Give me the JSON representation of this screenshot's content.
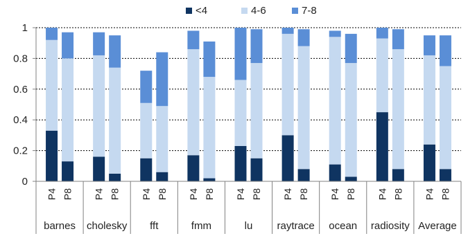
{
  "chart_data": {
    "type": "bar",
    "stacked": true,
    "groups": [
      "barnes",
      "cholesky",
      "fft",
      "fmm",
      "lu",
      "raytrace",
      "ocean",
      "radiosity",
      "Average"
    ],
    "bar_labels": [
      "P4",
      "P8"
    ],
    "series": [
      {
        "name": "<4",
        "color": "#0f3461",
        "values": [
          [
            0.33,
            0.13
          ],
          [
            0.16,
            0.05
          ],
          [
            0.15,
            0.06
          ],
          [
            0.17,
            0.02
          ],
          [
            0.23,
            0.15
          ],
          [
            0.3,
            0.08
          ],
          [
            0.11,
            0.03
          ],
          [
            0.45,
            0.08
          ],
          [
            0.24,
            0.08
          ]
        ]
      },
      {
        "name": "4-6",
        "color": "#c5d9f0",
        "values": [
          [
            0.59,
            0.67
          ],
          [
            0.66,
            0.69
          ],
          [
            0.36,
            0.43
          ],
          [
            0.69,
            0.66
          ],
          [
            0.43,
            0.62
          ],
          [
            0.66,
            0.8
          ],
          [
            0.83,
            0.74
          ],
          [
            0.48,
            0.78
          ],
          [
            0.58,
            0.67
          ]
        ]
      },
      {
        "name": "7-8",
        "color": "#5a8ed6",
        "values": [
          [
            0.08,
            0.17
          ],
          [
            0.15,
            0.21
          ],
          [
            0.21,
            0.35
          ],
          [
            0.12,
            0.23
          ],
          [
            0.34,
            0.22
          ],
          [
            0.04,
            0.11
          ],
          [
            0.04,
            0.19
          ],
          [
            0.07,
            0.13
          ],
          [
            0.13,
            0.2
          ]
        ]
      }
    ],
    "y_ticks": [
      "0",
      "0.2",
      "0.4",
      "0.6",
      "0.8",
      "1"
    ],
    "ylim": [
      0,
      1
    ],
    "grid": "horizontal-dashed",
    "legend_position": "top"
  }
}
